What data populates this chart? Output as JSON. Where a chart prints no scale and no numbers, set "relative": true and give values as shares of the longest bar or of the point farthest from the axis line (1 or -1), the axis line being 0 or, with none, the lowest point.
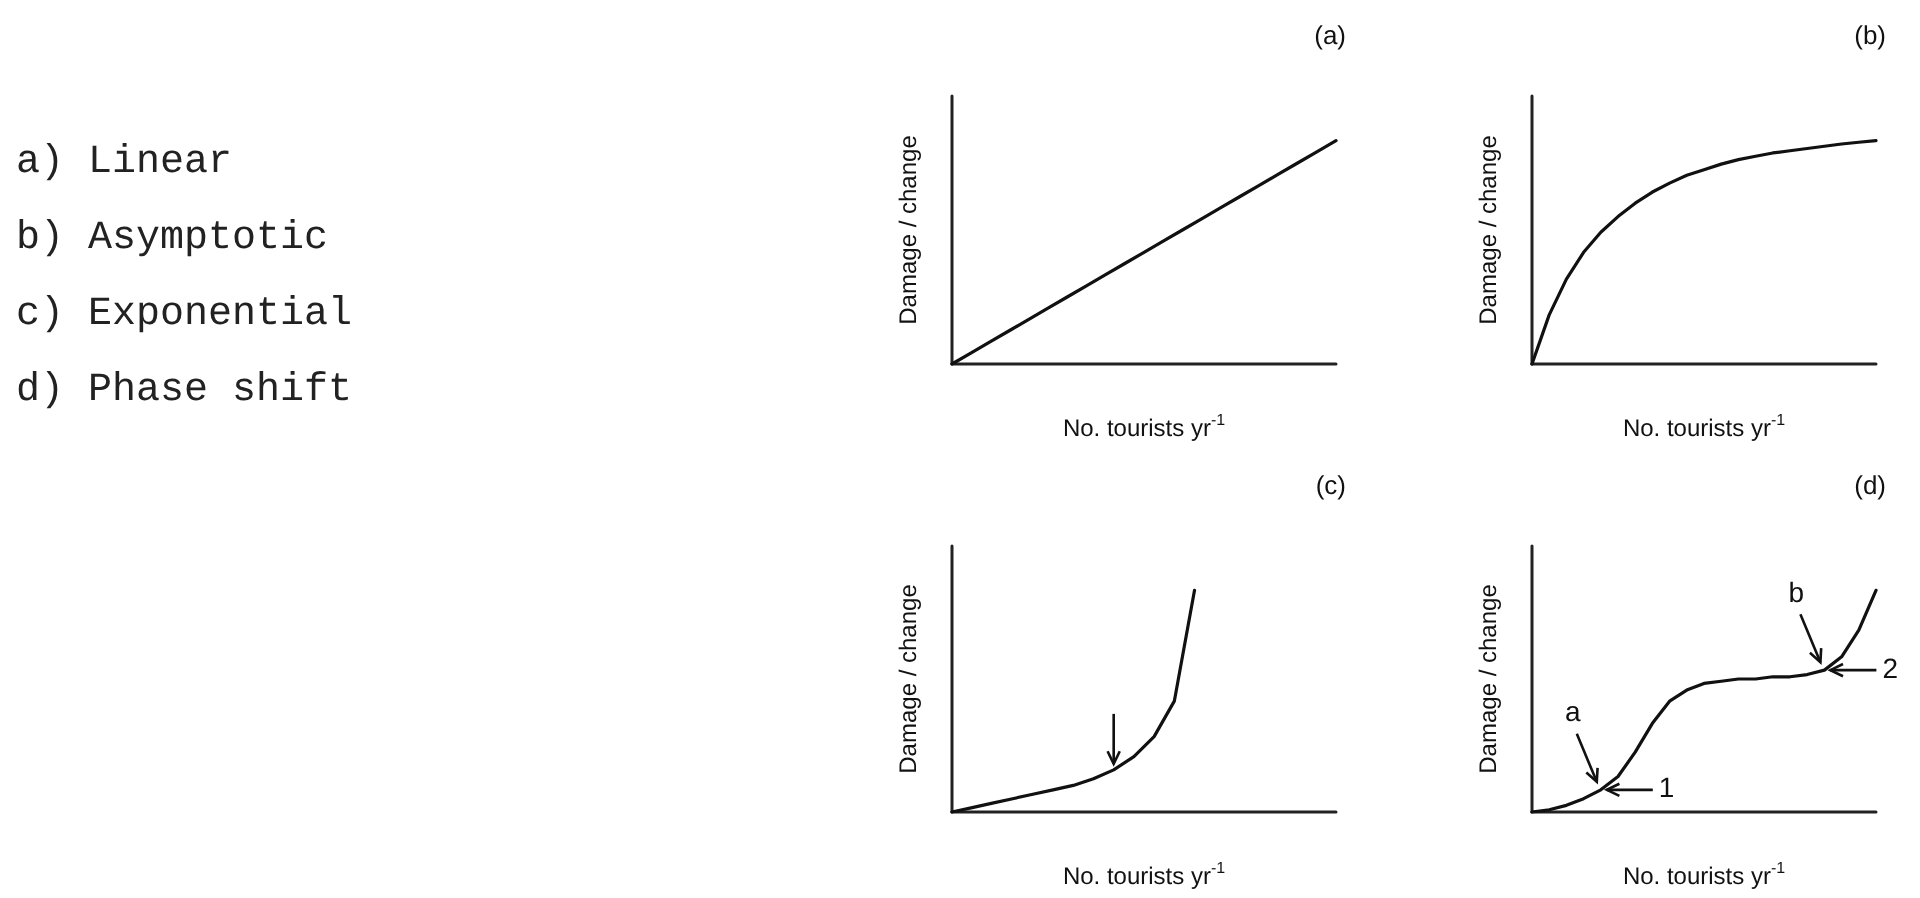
{
  "chart_data": [
    {
      "type": "other",
      "annotations": [
        "a) Linear",
        "b) Asymptotic",
        "c) Exponential",
        "d) Phase shift"
      ]
    },
    {
      "type": "line",
      "title": "(a)",
      "xlabel": "No. tourists yr$^{-1}$",
      "ylabel": "Damage / change",
      "relative": true,
      "categories": [
        null,
        null,
        null,
        null,
        null,
        null,
        null,
        null,
        null,
        null,
        null,
        null,
        null,
        null,
        null,
        null,
        null,
        null,
        null,
        null,
        null
      ],
      "series": [
        {
          "color": "#111111",
          "values": [
            0,
            0.05,
            0.1,
            0.15,
            0.2,
            0.25,
            0.3,
            0.35,
            0.4,
            0.45,
            0.5,
            0.55,
            0.6,
            0.65,
            0.7,
            0.75,
            0.8,
            0.85,
            0.9,
            0.95,
            1
          ]
        }
      ]
    },
    {
      "type": "line",
      "title": "(b)",
      "xlabel": "No. tourists yr$^{-1}$",
      "ylabel": "Damage / change",
      "relative": true,
      "categories": [
        null,
        null,
        null,
        null,
        null,
        null,
        null,
        null,
        null,
        null,
        null,
        null,
        null,
        null,
        null,
        null,
        null,
        null,
        null,
        null,
        null
      ],
      "series": [
        {
          "color": "#111111",
          "values": [
            0,
            0.22,
            0.38,
            0.5,
            0.59,
            0.66,
            0.72,
            0.77,
            0.81,
            0.845,
            0.87,
            0.895,
            0.915,
            0.93,
            0.945,
            0.955,
            0.965,
            0.975,
            0.985,
            0.993,
            1
          ]
        }
      ]
    },
    {
      "type": "line",
      "title": "(c)",
      "xlabel": "No. tourists yr$^{-1}$",
      "ylabel": "Damage / change",
      "relative": true,
      "categories": [
        null,
        null,
        null,
        null,
        null,
        null,
        null,
        null,
        null,
        null,
        null,
        null,
        null,
        null,
        null,
        null,
        null,
        null,
        null,
        null
      ],
      "series": [
        {
          "color": "#111111",
          "values": [
            0,
            0.02,
            0.04,
            0.06,
            0.08,
            0.1,
            0.12,
            0.15,
            0.19,
            0.25,
            0.34,
            0.5,
            1,
            null,
            null,
            null,
            null,
            null,
            null,
            null
          ]
        }
      ]
    },
    {
      "type": "line",
      "title": "(d)",
      "xlabel": "No. tourists yr$^{-1}$",
      "ylabel": "Damage / change",
      "relative": true,
      "categories": [
        null,
        null,
        null,
        null,
        null,
        null,
        null,
        null,
        null,
        null,
        null,
        null,
        null,
        null,
        null,
        null,
        null,
        null,
        null,
        null,
        null
      ],
      "annotations": [
        {
          "text": "a",
          "y": 0.08
        },
        "1",
        {
          "text": "b",
          "y": 0.64
        },
        "2"
      ],
      "series": [
        {
          "color": "#111111",
          "values": [
            0,
            0.01,
            0.03,
            0.06,
            0.1,
            0.16,
            0.27,
            0.4,
            0.5,
            0.55,
            0.58,
            0.59,
            0.6,
            0.6,
            0.61,
            0.61,
            0.62,
            0.64,
            0.7,
            0.82,
            1
          ]
        }
      ]
    }
  ]
}
